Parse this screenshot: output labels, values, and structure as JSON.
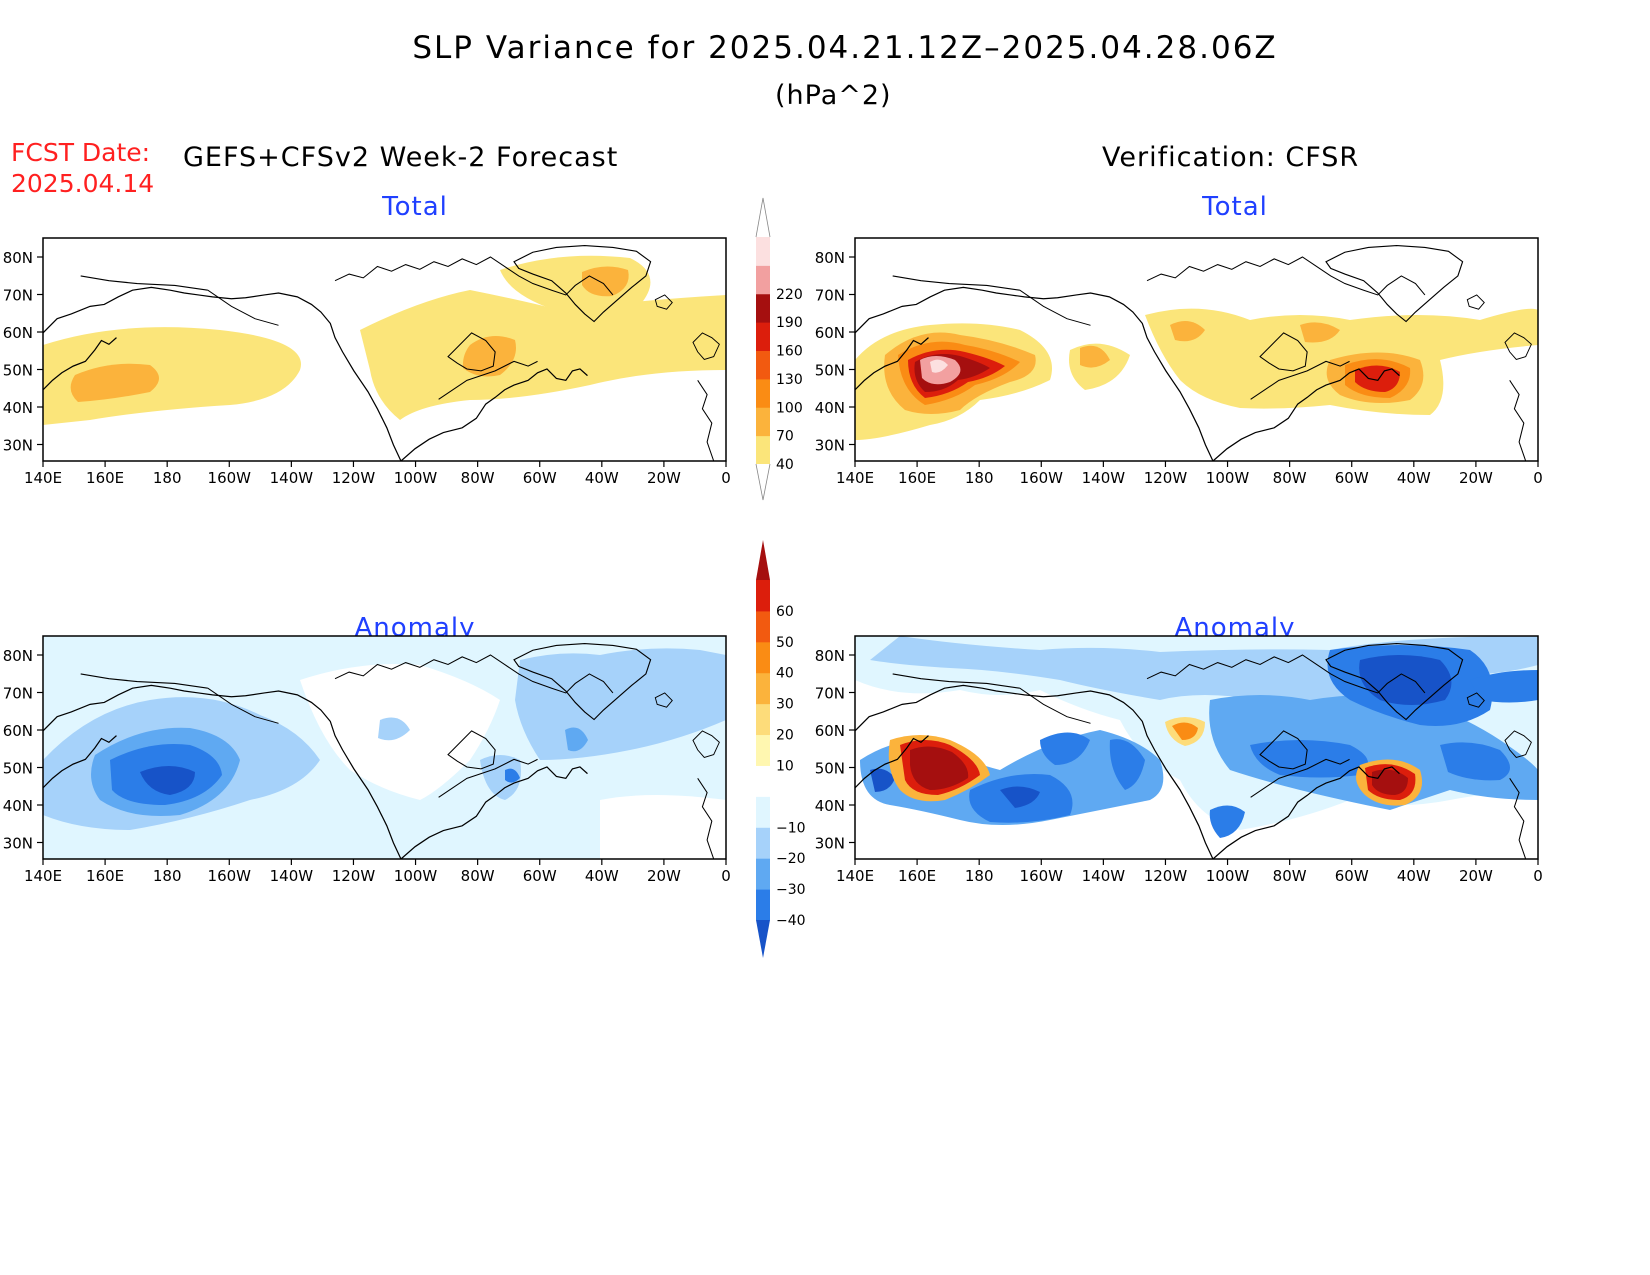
{
  "header": {
    "title": "SLP Variance for 2025.04.21.12Z–2025.04.28.06Z",
    "units": "(hPa^2)",
    "fcst_label": "FCST Date:",
    "fcst_date": "2025.04.14",
    "left_subtitle": "GEFS+CFSv2 Week-2 Forecast",
    "right_subtitle": "Verification: CFSR"
  },
  "panels": {
    "fc_total": {
      "title": "Total"
    },
    "vf_total": {
      "title": "Total"
    },
    "fc_anom": {
      "title": "Anomaly"
    },
    "vf_anom": {
      "title": "Anomaly"
    }
  },
  "axes": {
    "lat_labels": [
      "80N",
      "70N",
      "60N",
      "50N",
      "40N",
      "30N"
    ],
    "lon_labels": [
      "140E",
      "160E",
      "180",
      "160W",
      "140W",
      "120W",
      "100W",
      "80W",
      "60W",
      "40W",
      "20W",
      "0"
    ]
  },
  "colorbars": {
    "total": {
      "labels": [
        "40",
        "70",
        "100",
        "130",
        "160",
        "190",
        "220"
      ],
      "colors": [
        "#fbe57a",
        "#fbb33c",
        "#fa8c14",
        "#f25a10",
        "#dc1e0c",
        "#a50f0f",
        "#f2a0a0",
        "#fce0e0"
      ]
    },
    "anomaly": {
      "labels": [
        "−40",
        "−30",
        "−20",
        "−10",
        "10",
        "20",
        "30",
        "40",
        "50",
        "60"
      ],
      "colors": [
        "#1753c8",
        "#2b7de8",
        "#5fa9f2",
        "#a6d2fa",
        "#e0f6ff",
        "#ffffff",
        "#fff7b0",
        "#fddc7a",
        "#fbb33c",
        "#fa8c14",
        "#f25a10",
        "#dc1e0c",
        "#a50f0f"
      ]
    }
  }
}
